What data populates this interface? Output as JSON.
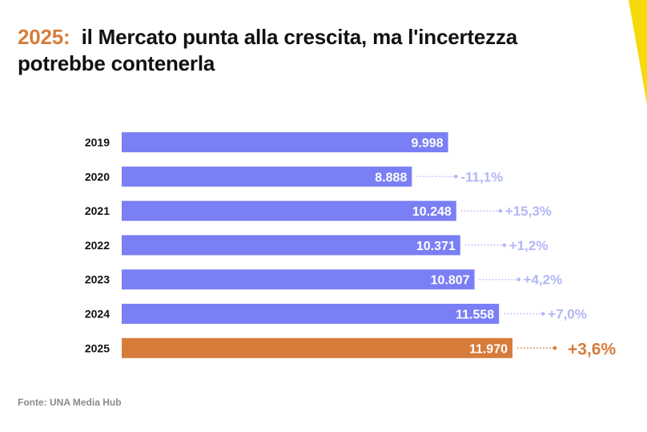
{
  "title": {
    "year": "2025:",
    "text_line1": "il Mercato punta alla crescita, ma l'incertezza",
    "text_line2": "potrebbe contenerla"
  },
  "source": "Fonte: UNA Media Hub",
  "colors": {
    "bar": "#7a7ff5",
    "highlight": "#d67c3b",
    "change_label": "#b3b7f6",
    "corner_accent": "#f5d90a"
  },
  "chart_data": {
    "type": "bar",
    "orientation": "horizontal",
    "categories": [
      "2019",
      "2020",
      "2021",
      "2022",
      "2023",
      "2024",
      "2025"
    ],
    "values": [
      9998,
      8888,
      10248,
      10371,
      10807,
      11558,
      11970
    ],
    "value_labels": [
      "9.998",
      "8.888",
      "10.248",
      "10.371",
      "10.807",
      "11.558",
      "11.970"
    ],
    "changes": [
      "",
      "-11,1%",
      "+15,3%",
      "+1,2%",
      "+4,2%",
      "+7,0%",
      "+3,6%"
    ],
    "highlight_index": 6,
    "xlim": [
      0,
      11970
    ],
    "grid": false,
    "legend": "none"
  }
}
